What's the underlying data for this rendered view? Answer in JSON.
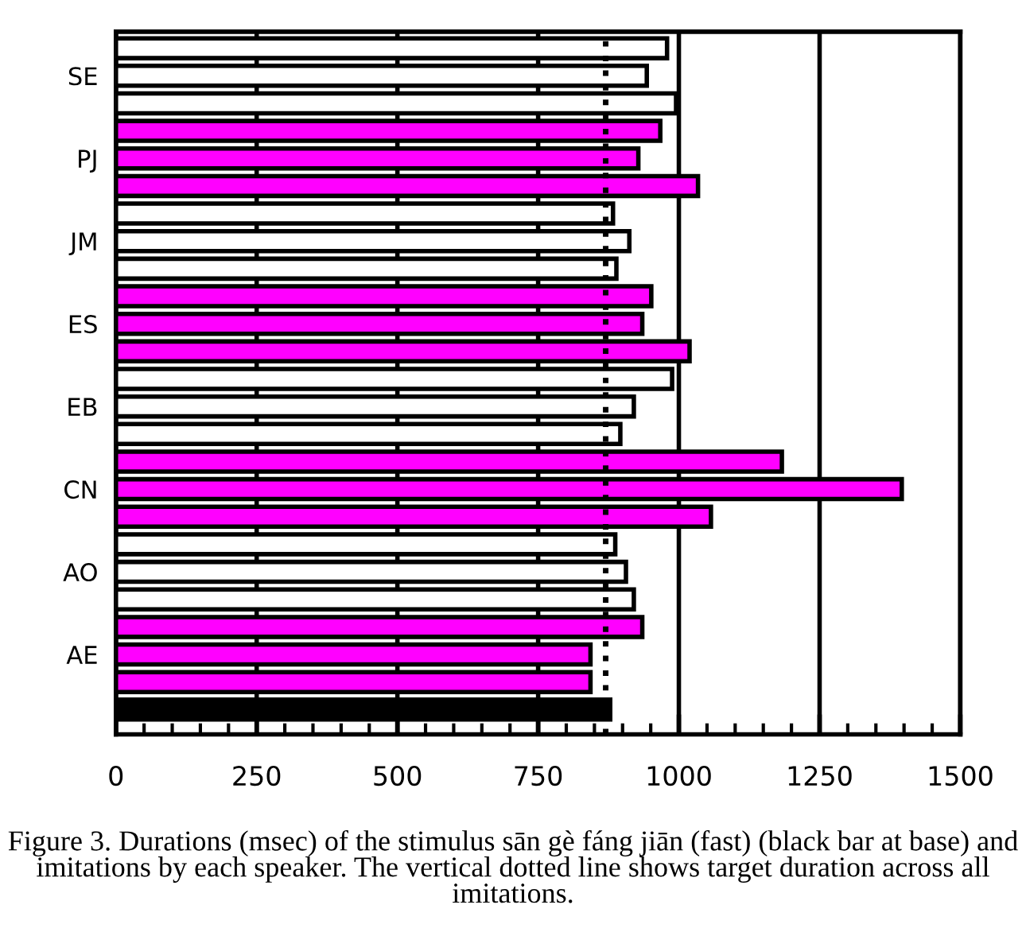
{
  "chart_data": {
    "type": "bar",
    "orientation": "horizontal",
    "categories": [
      null,
      "SE",
      null,
      null,
      "PJ",
      null,
      null,
      "JM",
      null,
      null,
      "ES",
      null,
      null,
      "EB",
      null,
      null,
      "CN",
      null,
      null,
      "AO",
      null,
      null,
      "AE",
      null,
      null
    ],
    "values": [
      979,
      943,
      995,
      967,
      928,
      1034,
      883,
      912,
      889,
      951,
      935,
      1019,
      988,
      920,
      896,
      1183,
      1396,
      1057,
      887,
      906,
      920,
      935,
      843,
      843,
      878
    ],
    "colors": [
      "#ffffff",
      "#ffffff",
      "#ffffff",
      "#ff00ff",
      "#ff00ff",
      "#ff00ff",
      "#ffffff",
      "#ffffff",
      "#ffffff",
      "#ff00ff",
      "#ff00ff",
      "#ff00ff",
      "#ffffff",
      "#ffffff",
      "#ffffff",
      "#ff00ff",
      "#ff00ff",
      "#ff00ff",
      "#ffffff",
      "#ffffff",
      "#ffffff",
      "#ff00ff",
      "#ff00ff",
      "#ff00ff",
      "#000000"
    ],
    "xlim": [
      0,
      1500
    ],
    "xticks": [
      0,
      250,
      500,
      750,
      1000,
      1250,
      1500,
      {
        "value": 50,
        "label": null
      },
      {
        "value": 100,
        "label": null
      },
      {
        "value": 150,
        "label": null
      },
      {
        "value": 200,
        "label": null
      },
      {
        "value": 300,
        "label": null
      },
      {
        "value": 350,
        "label": null
      },
      {
        "value": 400,
        "label": null
      },
      {
        "value": 450,
        "label": null
      },
      {
        "value": 550,
        "label": null
      },
      {
        "value": 600,
        "label": null
      },
      {
        "value": 650,
        "label": null
      },
      {
        "value": 700,
        "label": null
      },
      {
        "value": 800,
        "label": null
      },
      {
        "value": 850,
        "label": null
      },
      {
        "value": 900,
        "label": null
      },
      {
        "value": 950,
        "label": null
      },
      {
        "value": 1050,
        "label": null
      },
      {
        "value": 1100,
        "label": null
      },
      {
        "value": 1150,
        "label": null
      },
      {
        "value": 1200,
        "label": null
      },
      {
        "value": 1300,
        "label": null
      },
      {
        "value": 1350,
        "label": null
      },
      {
        "value": 1400,
        "label": null
      },
      {
        "value": 1450,
        "label": null
      }
    ],
    "grid": "x",
    "ref_lines": [
      {
        "axis": "x",
        "value": 870,
        "line_style": "dotted"
      }
    ],
    "annotations": [
      "Figure 3. Durations (msec) of the stimulus sān gè fáng jiān (fast) (black bar at base) and imitations by each speaker. The vertical dotted line shows target duration across all imitations."
    ]
  }
}
